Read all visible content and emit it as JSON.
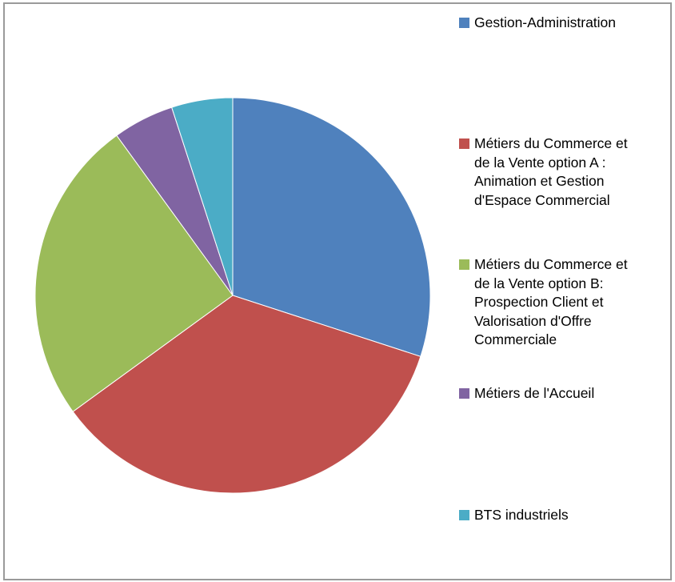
{
  "chart_data": {
    "type": "pie",
    "title": "",
    "slices": [
      {
        "label": "Gestion-Administration",
        "value": 30,
        "color": "#4F81BD"
      },
      {
        "label": "Métiers du Commerce et\nde la  Vente option A :\nAnimation et Gestion\nd'Espace Commercial",
        "value": 35,
        "color": "#C0504D"
      },
      {
        "label": "Métiers du Commerce et\nde la  Vente option B:\nProspection Client et\nValorisation d'Offre\nCommerciale",
        "value": 25,
        "color": "#9BBB59"
      },
      {
        "label": "Métiers de l'Accueil",
        "value": 5,
        "color": "#8064A2"
      },
      {
        "label": "BTS industriels",
        "value": 5,
        "color": "#4BACC6"
      }
    ],
    "start_angle_deg": 0,
    "direction": "clockwise",
    "legend_position": "right"
  }
}
